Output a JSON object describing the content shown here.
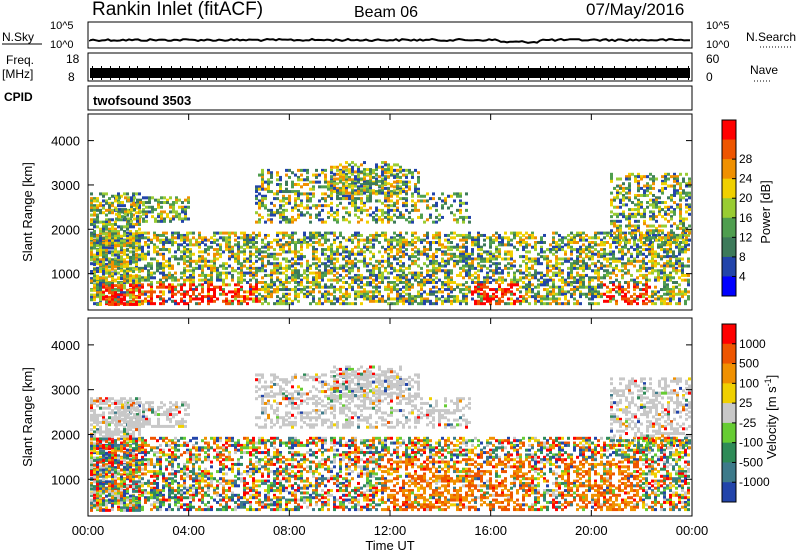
{
  "header": {
    "station": "Rankin Inlet (fitACF)",
    "beam": "Beam 06",
    "date": "07/May/2016"
  },
  "aux": {
    "nsky_label": "N.Sky",
    "nsearch_label": "N.Search",
    "nsky_ticks": [
      "10^5",
      "10^0"
    ],
    "nsearch_ticks": [
      "10^5",
      "10^0"
    ],
    "freq_label_1": "Freq.",
    "freq_label_2": "[MHz]",
    "freq_ticks": [
      "18",
      "8"
    ],
    "nave_label": "Nave",
    "nave_ticks": [
      "60",
      "0"
    ],
    "cpid_label": "CPID",
    "cpid_value": "twofsound 3503"
  },
  "chart_data": [
    {
      "type": "heatmap",
      "ylabel": "Slant Range [km]",
      "xlabel": "",
      "ylim": [
        180,
        4600
      ],
      "y_ticks": [
        1000,
        2000,
        3000,
        4000
      ],
      "colorbar": {
        "label": "Power [dB]",
        "ticks": [
          "4",
          "8",
          "12",
          "16",
          "20",
          "24",
          "28"
        ],
        "colors": [
          "#0000ff",
          "#2244aa",
          "#3d7a5a",
          "#4f9e4f",
          "#99cc33",
          "#f0d000",
          "#f09000",
          "#ee5500",
          "#ff0000"
        ]
      }
    },
    {
      "type": "heatmap",
      "ylabel": "Slant Range [km]",
      "xlabel": "Time UT",
      "ylim": [
        180,
        4600
      ],
      "y_ticks": [
        1000,
        2000,
        3000,
        4000
      ],
      "x_ticks": [
        "00:00",
        "04:00",
        "08:00",
        "12:00",
        "16:00",
        "20:00",
        "00:00"
      ],
      "colorbar": {
        "label": "Velocity [m s^-1]",
        "ticks": [
          "1000",
          "500",
          "100",
          "25",
          "-25",
          "-100",
          "-500",
          "-1000"
        ],
        "colors": [
          "#2244aa",
          "#3d7a8a",
          "#2e8b57",
          "#66cc33",
          "#c8c8c8",
          "#f0d000",
          "#f09000",
          "#ee5500",
          "#ff0000"
        ]
      }
    }
  ]
}
